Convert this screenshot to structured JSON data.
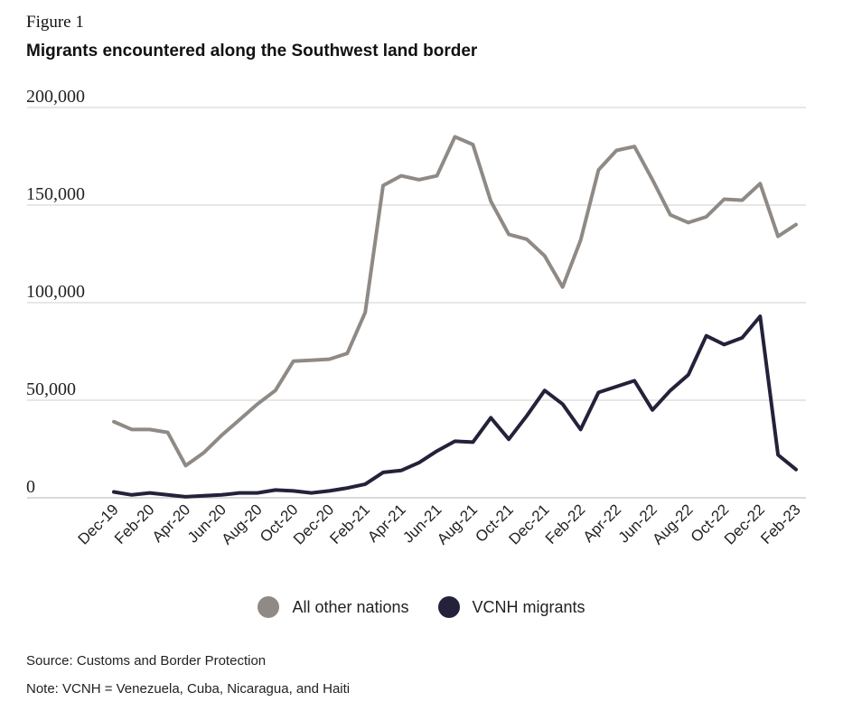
{
  "figure_label": "Figure 1",
  "chart_data": {
    "type": "line",
    "title": "Migrants encountered along the Southwest land border",
    "xlabel": "",
    "ylabel": "",
    "ylim": [
      0,
      200000
    ],
    "yticks": [
      0,
      50000,
      100000,
      150000,
      200000
    ],
    "ytick_labels": [
      "0",
      "50,000",
      "100,000",
      "150,000",
      "200,000"
    ],
    "grid": "horizontal",
    "legend_position": "bottom",
    "x": [
      "Dec-19",
      "Jan-20",
      "Feb-20",
      "Mar-20",
      "Apr-20",
      "May-20",
      "Jun-20",
      "Jul-20",
      "Aug-20",
      "Sep-20",
      "Oct-20",
      "Nov-20",
      "Dec-20",
      "Jan-21",
      "Feb-21",
      "Mar-21",
      "Apr-21",
      "May-21",
      "Jun-21",
      "Jul-21",
      "Aug-21",
      "Sep-21",
      "Oct-21",
      "Nov-21",
      "Dec-21",
      "Jan-22",
      "Feb-22",
      "Mar-22",
      "Apr-22",
      "May-22",
      "Jun-22",
      "Jul-22",
      "Aug-22",
      "Sep-22",
      "Oct-22",
      "Nov-22",
      "Dec-22",
      "Jan-23",
      "Feb-23"
    ],
    "x_tick_labels": [
      "Dec-19",
      "Feb-20",
      "Apr-20",
      "Jun-20",
      "Aug-20",
      "Oct-20",
      "Dec-20",
      "Feb-21",
      "Apr-21",
      "Jun-21",
      "Aug-21",
      "Oct-21",
      "Dec-21",
      "Feb-22",
      "Apr-22",
      "Jun-22",
      "Aug-22",
      "Oct-22",
      "Dec-22",
      "Feb-23"
    ],
    "series": [
      {
        "name": "All other nations",
        "color": "#8f8a85",
        "values": [
          39000,
          35000,
          35000,
          33500,
          16500,
          23000,
          32000,
          40000,
          48000,
          55000,
          70000,
          70500,
          71000,
          74000,
          95000,
          160000,
          165000,
          163000,
          165000,
          185000,
          181000,
          152000,
          135000,
          132500,
          124000,
          108000,
          132000,
          168000,
          178000,
          180000,
          163000,
          145000,
          141000,
          144000,
          153000,
          152500,
          161000,
          134000,
          140000
        ]
      },
      {
        "name": "VCNH migrants",
        "color": "#23223a",
        "values": [
          3000,
          1500,
          2500,
          1500,
          500,
          1000,
          1500,
          2500,
          2500,
          4000,
          3500,
          2500,
          3500,
          5000,
          7000,
          13000,
          14000,
          18000,
          24000,
          29000,
          28500,
          41000,
          30000,
          42000,
          55000,
          48000,
          35000,
          54000,
          57000,
          60000,
          45000,
          55000,
          63000,
          83000,
          78500,
          82000,
          93000,
          22000,
          14500
        ]
      }
    ]
  },
  "source_text": "Source: Customs and Border Protection",
  "note_text": "Note: VCNH = Venezuela, Cuba, Nicaragua, and Haiti"
}
